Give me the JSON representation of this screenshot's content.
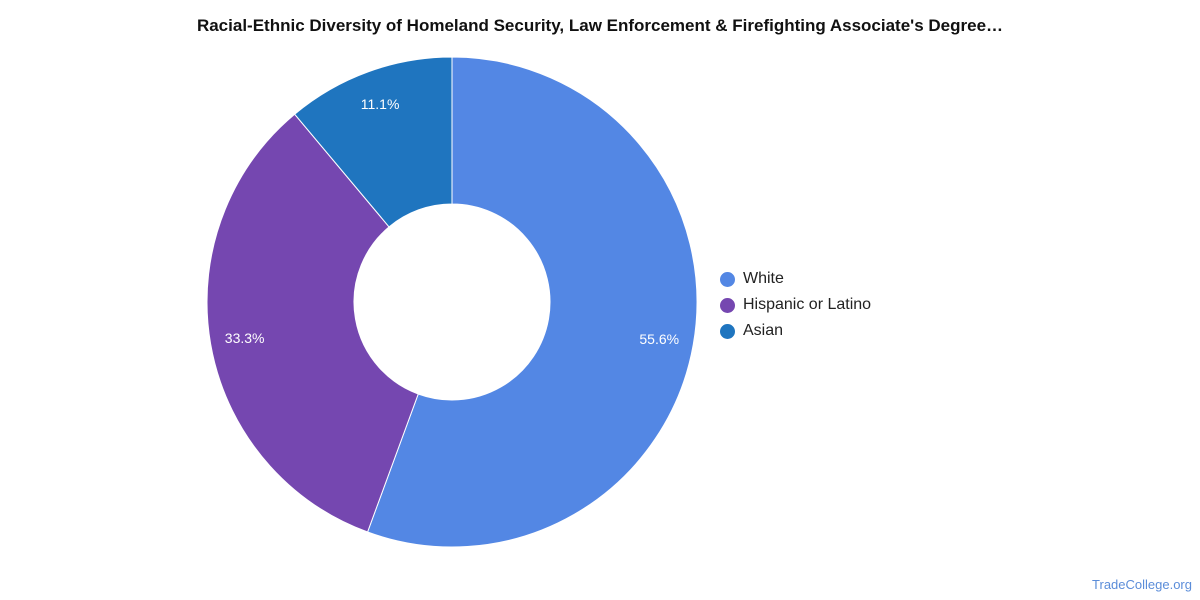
{
  "chart_data": {
    "type": "pie",
    "title": "Racial-Ethnic Diversity of Homeland Security, Law Enforcement & Firefighting Associate's Degree…",
    "series": [
      {
        "name": "White",
        "value": 55.6,
        "label": "55.6%",
        "color": "#5387e4"
      },
      {
        "name": "Hispanic or Latino",
        "value": 33.3,
        "label": "33.3%",
        "color": "#7547b0"
      },
      {
        "name": "Asian",
        "value": 11.1,
        "label": "11.1%",
        "color": "#1f75bf"
      }
    ],
    "legend_position": "right"
  },
  "source": "TradeCollege.org"
}
